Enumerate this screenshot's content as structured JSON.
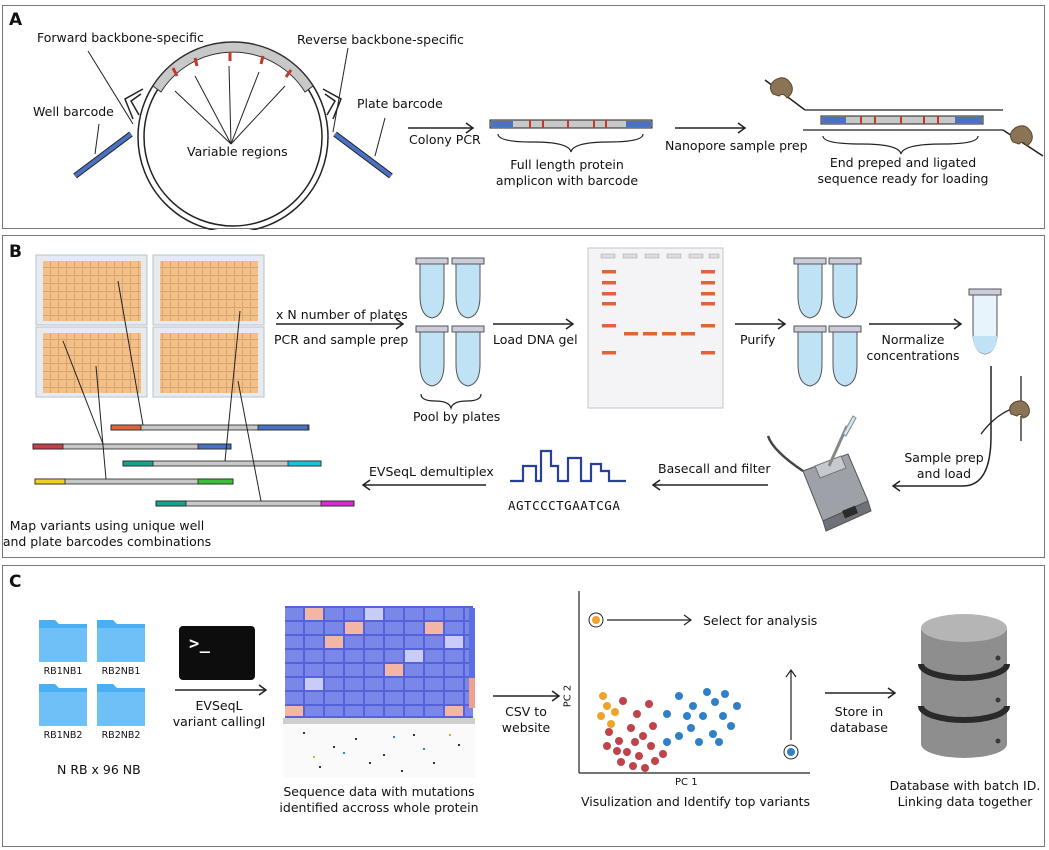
{
  "panel_a": {
    "label": "A",
    "forward_backbone": "Forward backbone-specific",
    "reverse_backbone": "Reverse backbone-specific",
    "well_barcode": "Well barcode",
    "plate_barcode": "Plate barcode",
    "variable_regions": "Variable regions",
    "colony_pcr": "Colony PCR",
    "amplicon_line1": "Full length protein",
    "amplicon_line2": "amplicon with barcode",
    "nanopore": "Nanopore sample prep",
    "end_prep_line1": "End preped and ligated",
    "end_prep_line2": "sequence ready for loading"
  },
  "panel_b": {
    "label": "B",
    "x_n_plates": "x N number of plates",
    "pcr_prep": "PCR and sample prep",
    "pool": "Pool by plates",
    "load_gel": "Load DNA gel",
    "purify": "Purify",
    "normalize_line1": "Normalize",
    "normalize_line2": "concentrations",
    "sample_prep_line1": "Sample prep",
    "sample_prep_line2": "and load",
    "basecall": "Basecall and filter",
    "sequence": "AGTCCCTGAATCGA",
    "demux": "EVSeqL demultiplex",
    "map_line1": "Map variants using unique well",
    "map_line2": "and plate barcodes combinations"
  },
  "panel_c": {
    "label": "C",
    "folders": [
      "RB1NB1",
      "RB2NB1",
      "RB1NB2",
      "RB2NB2"
    ],
    "folder_count": "N RB x 96 NB",
    "terminal_prompt": ">_",
    "variant_calling_line1": "EVSeqL",
    "variant_calling_line2": "variant callingI",
    "heatmap_line1": "Sequence data with mutations",
    "heatmap_line2": "identified accross whole protein",
    "csv_line1": "CSV to",
    "csv_line2": "website",
    "pc2": "PC 2",
    "pc1": "PC 1",
    "select": "Select for analysis",
    "visualize": "Visulization and Identify top variants",
    "store_line1": "Store in",
    "store_line2": "database",
    "db_line1": "Database with batch ID.",
    "db_line2": "Linking data together"
  },
  "colors": {
    "barcode_blue": "#4a72c4",
    "variable_red": "#c0392b",
    "plate_orange": "#f3c08a",
    "tube_blue": "#bfe3f5",
    "gel_band": "#e0643a",
    "scatter_red": "#c0424a",
    "scatter_blue": "#2f80c8",
    "scatter_orange": "#f0a32a",
    "folder_blue": "#4aaef2",
    "db_gray": "#8e8e8e"
  }
}
